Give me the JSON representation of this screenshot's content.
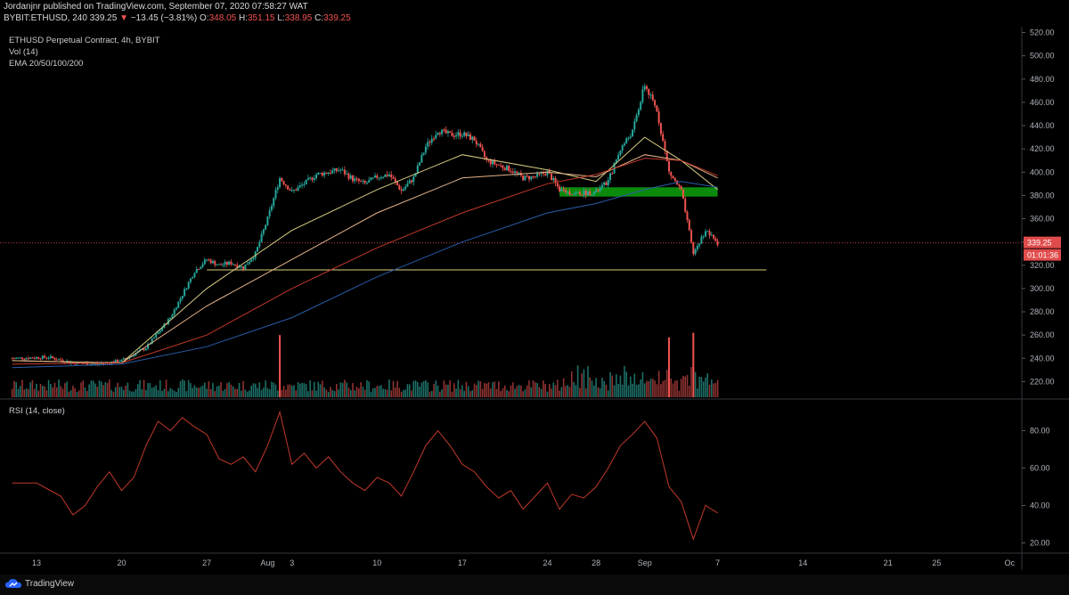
{
  "header": {
    "published": "Jordanjnr published on TradingView.com, September 07, 2020 07:58:27 WAT",
    "symbol": "BYBIT:ETHUSD, 240",
    "price": "339.25",
    "change": "−13.45 (−3.81%)",
    "o_label": "O:",
    "o_value": "348.05",
    "h_label": "H:",
    "h_value": "351.15",
    "l_label": "L:",
    "l_value": "338.95",
    "c_label": "C:",
    "c_value": "339.25"
  },
  "legend": {
    "instrument": "ETHUSD Perpetual Contract, 4h, BYBIT",
    "volume": "Vol (14)",
    "ema": "EMA 20/50/100/200",
    "rsi": "RSI (14, close)"
  },
  "branding": {
    "logo_text": "TradingView",
    "logo_icon": "tradingview-cloud-icon"
  },
  "colors": {
    "background": "#000000",
    "up": "#26a69a",
    "down": "#ef5350",
    "ema20": "#d7cc82",
    "ema50": "#e4b38a",
    "ema100": "#c0392b",
    "ema200": "#2a5ca8",
    "zone": "#0b8a0b",
    "rsi": "#c0392b",
    "price_label": "#e04b4b"
  },
  "chart_data": [
    {
      "type": "candlestick",
      "ylim": [
        205,
        525
      ],
      "y_ticks": [
        "520.00",
        "500.00",
        "480.00",
        "460.00",
        "440.00",
        "420.00",
        "400.00",
        "380.00",
        "360.00",
        "340.00",
        "320.00",
        "300.00",
        "280.00",
        "260.00",
        "240.00",
        "220.00"
      ],
      "x_ticks": [
        "13",
        "20",
        "27",
        "Aug",
        "3",
        "10",
        "17",
        "24",
        "28",
        "Sep",
        "7",
        "14",
        "21",
        "25",
        "Oc"
      ],
      "current_price_label": "339.25",
      "countdown_label": "01:01:36",
      "current_price": 339.25,
      "support_line": 316,
      "zone": [
        379,
        387
      ],
      "price_path": [
        [
          "2020-07-11",
          240
        ],
        [
          "2020-07-14",
          241
        ],
        [
          "2020-07-16",
          236
        ],
        [
          "2020-07-18",
          235
        ],
        [
          "2020-07-20",
          238
        ],
        [
          "2020-07-22",
          249
        ],
        [
          "2020-07-24",
          275
        ],
        [
          "2020-07-25",
          295
        ],
        [
          "2020-07-26",
          315
        ],
        [
          "2020-07-27",
          325
        ],
        [
          "2020-07-28",
          320
        ],
        [
          "2020-07-29",
          322
        ],
        [
          "2020-07-30",
          318
        ],
        [
          "2020-07-31",
          330
        ],
        [
          "2020-08-01",
          360
        ],
        [
          "2020-08-02",
          395
        ],
        [
          "2020-08-03",
          383
        ],
        [
          "2020-08-04",
          390
        ],
        [
          "2020-08-05",
          398
        ],
        [
          "2020-08-07",
          402
        ],
        [
          "2020-08-08",
          394
        ],
        [
          "2020-08-09",
          390
        ],
        [
          "2020-08-10",
          396
        ],
        [
          "2020-08-11",
          398
        ],
        [
          "2020-08-12",
          384
        ],
        [
          "2020-08-13",
          395
        ],
        [
          "2020-08-14",
          422
        ],
        [
          "2020-08-15",
          436
        ],
        [
          "2020-08-16",
          432
        ],
        [
          "2020-08-17",
          433
        ],
        [
          "2020-08-18",
          428
        ],
        [
          "2020-08-19",
          410
        ],
        [
          "2020-08-21",
          402
        ],
        [
          "2020-08-22",
          395
        ],
        [
          "2020-08-23",
          396
        ],
        [
          "2020-08-24",
          400
        ],
        [
          "2020-08-25",
          385
        ],
        [
          "2020-08-26",
          382
        ],
        [
          "2020-08-27",
          382
        ],
        [
          "2020-08-28",
          383
        ],
        [
          "2020-08-29",
          392
        ],
        [
          "2020-08-30",
          420
        ],
        [
          "2020-08-31",
          435
        ],
        [
          "2020-09-01",
          475
        ],
        [
          "2020-09-02",
          453
        ],
        [
          "2020-09-03",
          400
        ],
        [
          "2020-09-04",
          384
        ],
        [
          "2020-09-05",
          330
        ],
        [
          "2020-09-06",
          350
        ],
        [
          "2020-09-07",
          339
        ]
      ],
      "volume_spikes": [
        [
          "2020-08-02",
          260
        ],
        [
          "2020-09-03",
          258
        ],
        [
          "2020-09-05",
          262
        ]
      ],
      "ema": [
        {
          "name": "EMA 20",
          "points": [
            [
              "2020-07-11",
              238
            ],
            [
              "2020-07-20",
              236
            ],
            [
              "2020-07-27",
              300
            ],
            [
              "2020-08-03",
              350
            ],
            [
              "2020-08-10",
              385
            ],
            [
              "2020-08-17",
              415
            ],
            [
              "2020-08-24",
              402
            ],
            [
              "2020-08-28",
              392
            ],
            [
              "2020-09-01",
              430
            ],
            [
              "2020-09-04",
              410
            ],
            [
              "2020-09-07",
              385
            ]
          ]
        },
        {
          "name": "EMA 50",
          "points": [
            [
              "2020-07-11",
              238
            ],
            [
              "2020-07-20",
              236
            ],
            [
              "2020-07-27",
              285
            ],
            [
              "2020-08-03",
              325
            ],
            [
              "2020-08-10",
              365
            ],
            [
              "2020-08-17",
              395
            ],
            [
              "2020-08-24",
              400
            ],
            [
              "2020-08-28",
              396
            ],
            [
              "2020-09-01",
              415
            ],
            [
              "2020-09-04",
              410
            ],
            [
              "2020-09-07",
              395
            ]
          ]
        },
        {
          "name": "EMA 100",
          "points": [
            [
              "2020-07-11",
              235
            ],
            [
              "2020-07-20",
              236
            ],
            [
              "2020-07-27",
              260
            ],
            [
              "2020-08-03",
              300
            ],
            [
              "2020-08-10",
              335
            ],
            [
              "2020-08-17",
              365
            ],
            [
              "2020-08-24",
              390
            ],
            [
              "2020-08-28",
              398
            ],
            [
              "2020-09-01",
              412
            ],
            [
              "2020-09-04",
              410
            ],
            [
              "2020-09-07",
              397
            ]
          ]
        },
        {
          "name": "EMA 200",
          "points": [
            [
              "2020-07-11",
              232
            ],
            [
              "2020-07-20",
              235
            ],
            [
              "2020-07-27",
              250
            ],
            [
              "2020-08-03",
              275
            ],
            [
              "2020-08-10",
              310
            ],
            [
              "2020-08-17",
              340
            ],
            [
              "2020-08-24",
              365
            ],
            [
              "2020-08-28",
              373
            ],
            [
              "2020-09-01",
              385
            ],
            [
              "2020-09-04",
              392
            ],
            [
              "2020-09-07",
              387
            ]
          ]
        }
      ]
    },
    {
      "type": "line",
      "name": "RSI (14, close)",
      "ylim": [
        15,
        95
      ],
      "y_ticks": [
        "80.00",
        "60.00",
        "40.00",
        "20.00"
      ],
      "points": [
        [
          "2020-07-11",
          52
        ],
        [
          "2020-07-13",
          52
        ],
        [
          "2020-07-15",
          45
        ],
        [
          "2020-07-16",
          35
        ],
        [
          "2020-07-17",
          40
        ],
        [
          "2020-07-18",
          50
        ],
        [
          "2020-07-19",
          58
        ],
        [
          "2020-07-20",
          48
        ],
        [
          "2020-07-21",
          55
        ],
        [
          "2020-07-22",
          72
        ],
        [
          "2020-07-23",
          85
        ],
        [
          "2020-07-24",
          80
        ],
        [
          "2020-07-25",
          87
        ],
        [
          "2020-07-26",
          82
        ],
        [
          "2020-07-27",
          78
        ],
        [
          "2020-07-28",
          65
        ],
        [
          "2020-07-29",
          62
        ],
        [
          "2020-07-30",
          66
        ],
        [
          "2020-07-31",
          58
        ],
        [
          "2020-08-01",
          72
        ],
        [
          "2020-08-02",
          90
        ],
        [
          "2020-08-03",
          62
        ],
        [
          "2020-08-04",
          68
        ],
        [
          "2020-08-05",
          60
        ],
        [
          "2020-08-06",
          66
        ],
        [
          "2020-08-07",
          58
        ],
        [
          "2020-08-08",
          52
        ],
        [
          "2020-08-09",
          48
        ],
        [
          "2020-08-10",
          55
        ],
        [
          "2020-08-11",
          52
        ],
        [
          "2020-08-12",
          45
        ],
        [
          "2020-08-13",
          58
        ],
        [
          "2020-08-14",
          72
        ],
        [
          "2020-08-15",
          80
        ],
        [
          "2020-08-16",
          72
        ],
        [
          "2020-08-17",
          62
        ],
        [
          "2020-08-18",
          58
        ],
        [
          "2020-08-19",
          50
        ],
        [
          "2020-08-20",
          44
        ],
        [
          "2020-08-21",
          48
        ],
        [
          "2020-08-22",
          38
        ],
        [
          "2020-08-23",
          45
        ],
        [
          "2020-08-24",
          52
        ],
        [
          "2020-08-25",
          38
        ],
        [
          "2020-08-26",
          46
        ],
        [
          "2020-08-27",
          44
        ],
        [
          "2020-08-28",
          50
        ],
        [
          "2020-08-29",
          60
        ],
        [
          "2020-08-30",
          72
        ],
        [
          "2020-08-31",
          78
        ],
        [
          "2020-09-01",
          85
        ],
        [
          "2020-09-02",
          76
        ],
        [
          "2020-09-03",
          50
        ],
        [
          "2020-09-04",
          42
        ],
        [
          "2020-09-05",
          22
        ],
        [
          "2020-09-06",
          40
        ],
        [
          "2020-09-07",
          36
        ]
      ]
    }
  ]
}
